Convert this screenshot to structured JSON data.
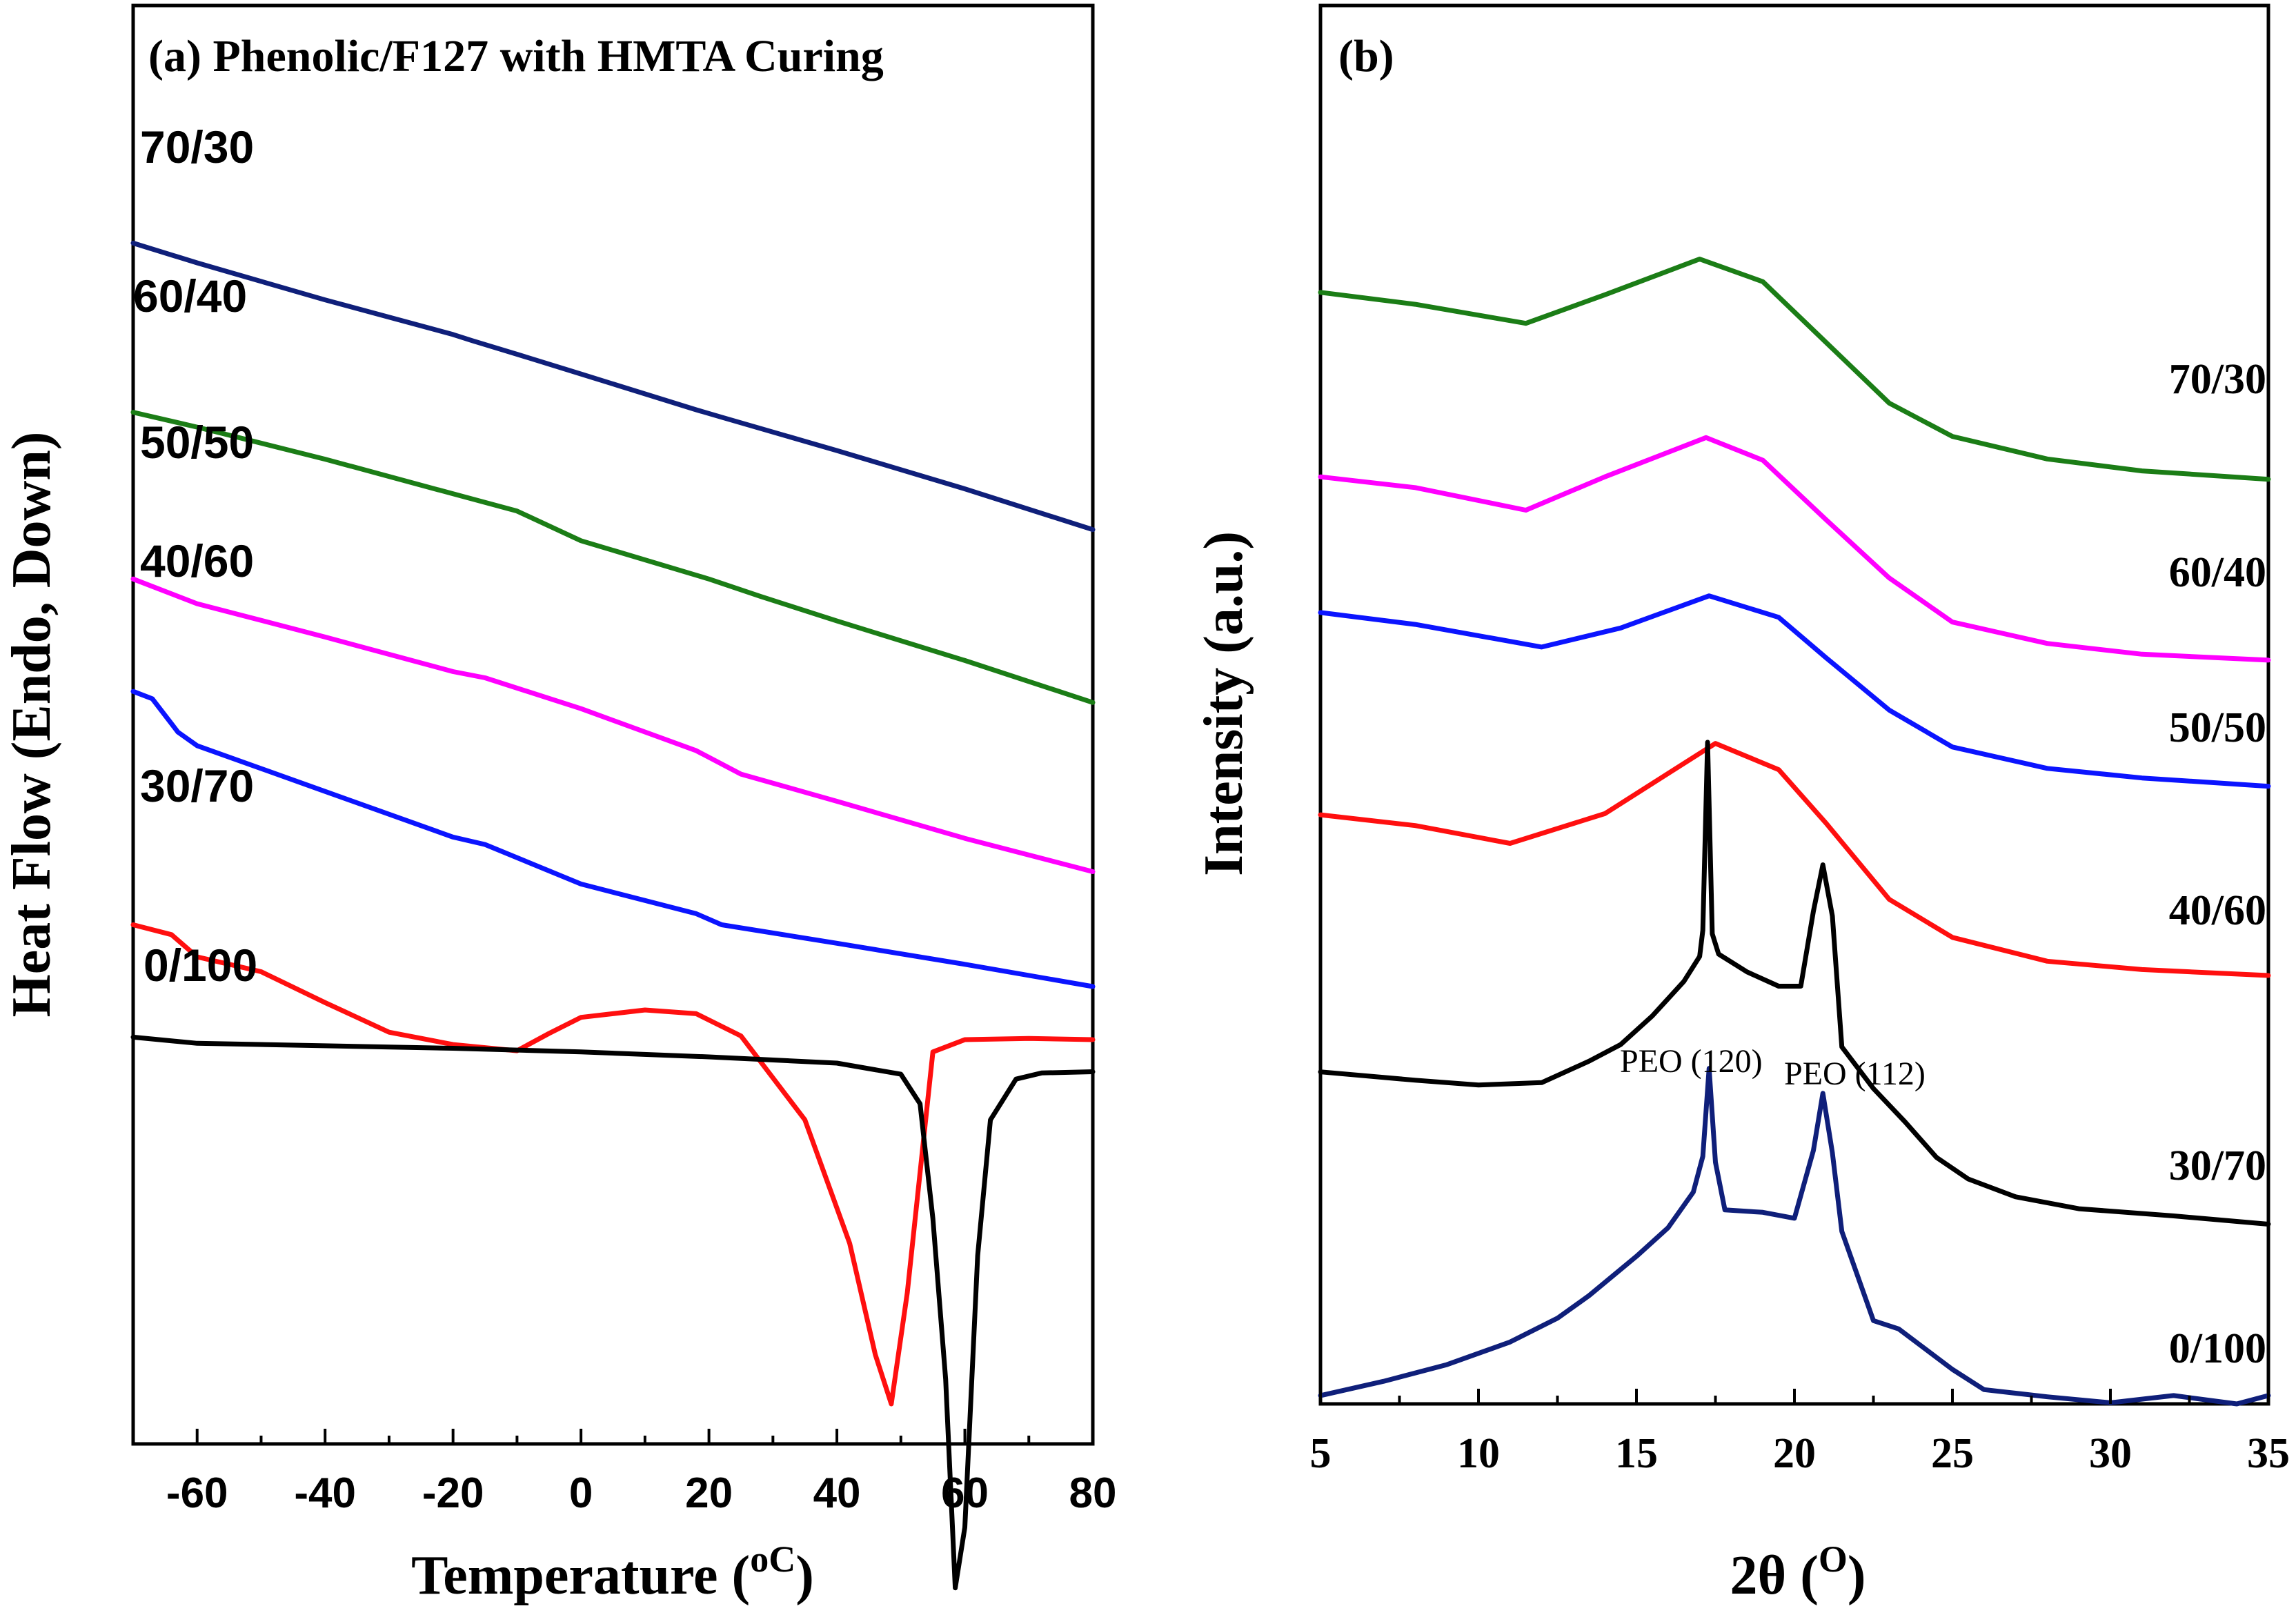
{
  "chart_data": [
    {
      "type": "line",
      "panel": "a",
      "title": "(a) Phenolic/F127 with HMTA Curing",
      "xlabel": "Temperature",
      "xlabel_unit": "oC",
      "ylabel": "Heat Flow (Endo, Down)",
      "xlim": [
        -70,
        80
      ],
      "ylim": [
        0,
        100
      ],
      "y_tick_labels_shown": false,
      "xticks": [
        -60,
        -40,
        -20,
        0,
        20,
        40,
        60,
        80
      ],
      "grid": false,
      "legend": "inline labels at left of each curve",
      "series": [
        {
          "name": "70/30",
          "color": "#0f1f7a",
          "x": [
            -70,
            -60,
            -40,
            -20,
            -17,
            -10,
            0,
            18,
            22,
            40,
            60,
            80
          ],
          "y": [
            94,
            92.4,
            89.4,
            86.6,
            86.1,
            85,
            83.4,
            80.5,
            79.9,
            77.2,
            74.1,
            70.8
          ]
        },
        {
          "name": "60/40",
          "color": "#1b7d16",
          "x": [
            -70,
            -60,
            -40,
            -20,
            -10,
            0,
            20,
            28,
            40,
            60,
            80
          ],
          "y": [
            80.3,
            79.1,
            76.5,
            73.7,
            72.3,
            69.9,
            66.8,
            65.4,
            63.4,
            60.2,
            56.8
          ]
        },
        {
          "name": "50/50",
          "color": "#ff00ff",
          "x": [
            -70,
            -60,
            -40,
            -20,
            -15,
            0,
            18,
            25,
            40,
            60,
            80
          ],
          "y": [
            66.8,
            64.8,
            62.1,
            59.3,
            58.8,
            56.3,
            52.9,
            51,
            48.8,
            45.8,
            43.1
          ]
        },
        {
          "name": "40/60",
          "color": "#0b14ff",
          "x": [
            -70,
            -67,
            -63,
            -60,
            -40,
            -20,
            -15,
            0,
            18,
            22,
            40,
            60,
            80
          ],
          "y": [
            57.7,
            57.1,
            54.4,
            53.3,
            49.6,
            45.9,
            45.3,
            42.1,
            39.7,
            38.8,
            37.3,
            35.6,
            33.8
          ]
        },
        {
          "name": "30/70",
          "color": "#ff0f0f",
          "x": [
            -70,
            -64,
            -60,
            -50,
            -40,
            -30,
            -20,
            -10,
            -5,
            0,
            10,
            18,
            25,
            35,
            42,
            46,
            48.5,
            51,
            55,
            60,
            70,
            80
          ],
          "y": [
            38.8,
            38,
            36.2,
            35,
            32.5,
            30.1,
            29.1,
            28.6,
            30,
            31.3,
            31.9,
            31.6,
            29.8,
            23,
            13,
            4,
            0,
            9,
            28.5,
            29.5,
            29.6,
            29.5
          ]
        },
        {
          "name": "0/100",
          "color": "#000000",
          "x": [
            -70,
            -60,
            -40,
            -20,
            0,
            20,
            40,
            50,
            53,
            55,
            57,
            58.5,
            60,
            62,
            64,
            68,
            72,
            80
          ],
          "y": [
            29.7,
            29.2,
            29,
            28.8,
            28.5,
            28.1,
            27.6,
            26.7,
            24.3,
            15,
            2,
            -14.9,
            -10,
            12,
            23,
            26.3,
            26.8,
            26.9
          ]
        }
      ]
    },
    {
      "type": "line",
      "panel": "b",
      "title": "(b)",
      "xlabel": "2θ",
      "xlabel_unit": "O",
      "ylabel": "Intensity (a.u.)",
      "xlim": [
        5,
        35
      ],
      "ylim": [
        0,
        100
      ],
      "y_tick_labels_shown": false,
      "xticks": [
        5,
        10,
        15,
        20,
        25,
        30,
        35
      ],
      "grid": false,
      "legend": "inline labels at right of each curve",
      "annotations": [
        "PEO (120)",
        "PEO (112)"
      ],
      "series": [
        {
          "name": "70/30",
          "color": "#1b7d16",
          "x": [
            5,
            8,
            11.5,
            14,
            17,
            19,
            21,
            23,
            25,
            28,
            31,
            35
          ],
          "y": [
            93.4,
            92.4,
            90.8,
            93.2,
            96.2,
            94.3,
            89.2,
            84.1,
            81.3,
            79.4,
            78.4,
            77.7
          ]
        },
        {
          "name": "60/40",
          "color": "#ff00ff",
          "x": [
            5,
            8,
            11.5,
            14,
            17.2,
            19,
            21,
            23,
            25,
            28,
            31,
            35
          ],
          "y": [
            77.9,
            77,
            75.1,
            77.9,
            81.2,
            79.3,
            74.3,
            69.4,
            65.7,
            63.9,
            63,
            62.5
          ]
        },
        {
          "name": "50/50",
          "color": "#0b14ff",
          "x": [
            5,
            8,
            12,
            14.5,
            17.3,
            19.5,
            21,
            23,
            25,
            28,
            31,
            35
          ],
          "y": [
            66.5,
            65.5,
            63.6,
            65.2,
            67.9,
            66.1,
            62.7,
            58.3,
            55.2,
            53.4,
            52.6,
            51.9
          ]
        },
        {
          "name": "40/60",
          "color": "#ff0f0f",
          "x": [
            5,
            8,
            11,
            14,
            17.5,
            19.5,
            21,
            23,
            25,
            28,
            31,
            35
          ],
          "y": [
            49.5,
            48.6,
            47.1,
            49.6,
            55.5,
            53.3,
            48.8,
            42.4,
            39.2,
            37.2,
            36.5,
            36
          ]
        },
        {
          "name": "30/70",
          "color": "#000000",
          "x": [
            5,
            8,
            10,
            12,
            13.5,
            14.5,
            15.5,
            16.5,
            17,
            17.1,
            17.25,
            17.4,
            17.6,
            18.5,
            19.5,
            20.2,
            20.6,
            20.9,
            21.2,
            21.5,
            22.5,
            23.5,
            24.5,
            25.5,
            27,
            29,
            32,
            35
          ],
          "y": [
            27.9,
            27.2,
            26.8,
            27,
            28.8,
            30.2,
            32.6,
            35.5,
            37.6,
            39.8,
            55.6,
            39.5,
            37.8,
            36.3,
            35.1,
            35.1,
            41.4,
            45.3,
            41,
            30,
            26.5,
            23.7,
            20.7,
            18.9,
            17.4,
            16.4,
            15.8,
            15.1
          ]
        },
        {
          "name": "0/100",
          "color": "#0f1f7a",
          "x": [
            5,
            7,
            9,
            11,
            12.5,
            13.5,
            15,
            16,
            16.8,
            17.1,
            17.3,
            17.5,
            17.8,
            19,
            20,
            20.6,
            20.9,
            21.2,
            21.5,
            22.5,
            23.3,
            24,
            25,
            26,
            28,
            30,
            32,
            34,
            35
          ],
          "y": [
            0.7,
            1.9,
            3.3,
            5.2,
            7.2,
            9.1,
            12.4,
            14.8,
            17.8,
            20.8,
            28.2,
            20.3,
            16.3,
            16.1,
            15.6,
            21.3,
            26.1,
            21.1,
            14.5,
            7,
            6.3,
            4.9,
            2.9,
            1.2,
            0.6,
            0.1,
            0.7,
            0,
            0.7
          ]
        }
      ]
    }
  ]
}
